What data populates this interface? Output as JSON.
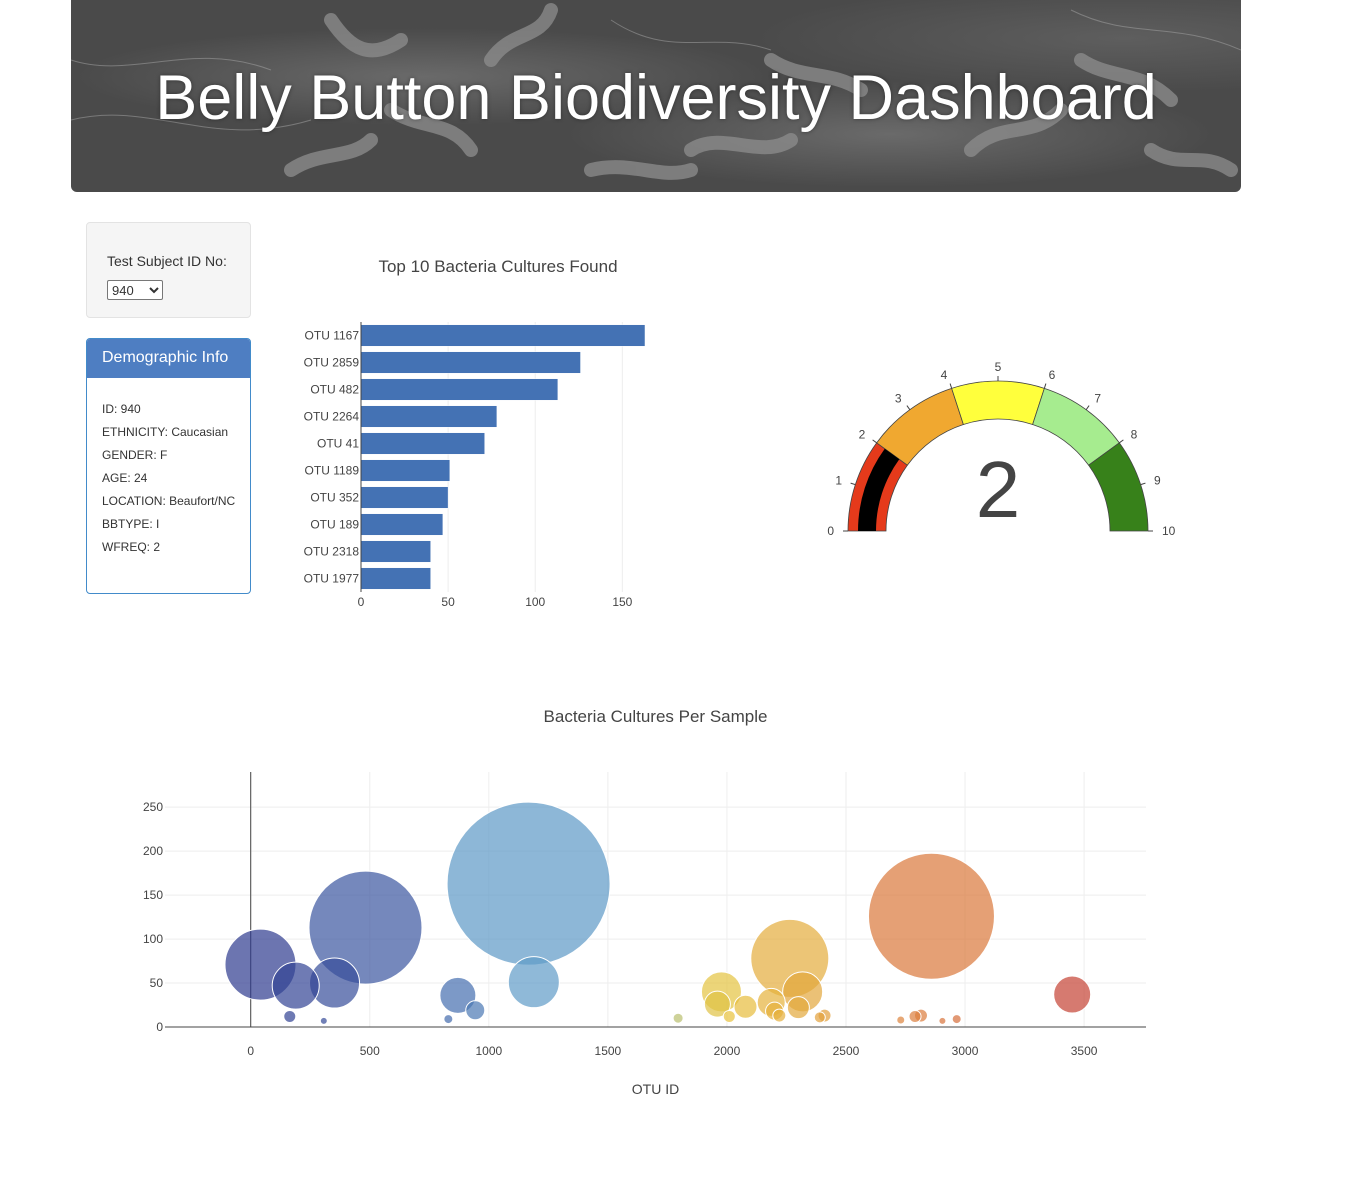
{
  "header": {
    "title": "Belly Button Biodiversity Dashboard"
  },
  "selector": {
    "label": "Test Subject ID No:",
    "selected": "940"
  },
  "demographics": {
    "title": "Demographic Info",
    "items": [
      "ID: 940",
      "ETHNICITY: Caucasian",
      "GENDER: F",
      "AGE: 24",
      "LOCATION: Beaufort/NC",
      "BBTYPE: I",
      "WFREQ: 2"
    ]
  },
  "chart_data": [
    {
      "type": "bar",
      "orientation": "horizontal",
      "title": "Top 10 Bacteria Cultures Found",
      "categories": [
        "OTU 1167",
        "OTU 2859",
        "OTU 482",
        "OTU 2264",
        "OTU 41",
        "OTU 1189",
        "OTU 352",
        "OTU 189",
        "OTU 2318",
        "OTU 1977"
      ],
      "values": [
        163,
        126,
        113,
        78,
        71,
        51,
        50,
        47,
        40,
        40
      ],
      "xlim": [
        0,
        163
      ],
      "xticks": [
        0,
        50,
        100,
        150
      ],
      "color": "#4472b4",
      "grid": true
    },
    {
      "type": "gauge",
      "value": 2,
      "range": [
        0,
        10
      ],
      "ticks": [
        0,
        1,
        2,
        3,
        4,
        5,
        6,
        7,
        8,
        9,
        10
      ],
      "bands": [
        {
          "from": 0,
          "to": 2,
          "color": "#e53a1b"
        },
        {
          "from": 2,
          "to": 4,
          "color": "#f0a830"
        },
        {
          "from": 4,
          "to": 6,
          "color": "#ffff3c"
        },
        {
          "from": 6,
          "to": 8,
          "color": "#a6ec8f"
        },
        {
          "from": 8,
          "to": 10,
          "color": "#37811a"
        }
      ],
      "bar_color": "#000000"
    },
    {
      "type": "scatter",
      "title": "Bacteria Cultures Per Sample",
      "xlabel": "OTU ID",
      "ylabel": "",
      "xlim": [
        -360,
        3760
      ],
      "ylim": [
        0,
        290
      ],
      "xticks": [
        0,
        500,
        1000,
        1500,
        2000,
        2500,
        3000,
        3500
      ],
      "yticks": [
        0,
        50,
        100,
        150,
        200,
        250
      ],
      "grid": true,
      "points": [
        {
          "x": 41,
          "y": 71
        },
        {
          "x": 189,
          "y": 47
        },
        {
          "x": 352,
          "y": 50
        },
        {
          "x": 482,
          "y": 113
        },
        {
          "x": 164,
          "y": 12
        },
        {
          "x": 307,
          "y": 7
        },
        {
          "x": 870,
          "y": 36
        },
        {
          "x": 943,
          "y": 19
        },
        {
          "x": 830,
          "y": 9
        },
        {
          "x": 1167,
          "y": 163
        },
        {
          "x": 1189,
          "y": 51
        },
        {
          "x": 1795,
          "y": 10
        },
        {
          "x": 1977,
          "y": 40
        },
        {
          "x": 1960,
          "y": 26
        },
        {
          "x": 2010,
          "y": 12
        },
        {
          "x": 2078,
          "y": 23
        },
        {
          "x": 2186,
          "y": 28
        },
        {
          "x": 2200,
          "y": 18
        },
        {
          "x": 2220,
          "y": 13
        },
        {
          "x": 2264,
          "y": 78
        },
        {
          "x": 2318,
          "y": 40
        },
        {
          "x": 2300,
          "y": 22
        },
        {
          "x": 2390,
          "y": 11
        },
        {
          "x": 2410,
          "y": 13
        },
        {
          "x": 2859,
          "y": 126
        },
        {
          "x": 2730,
          "y": 8
        },
        {
          "x": 2790,
          "y": 12
        },
        {
          "x": 2815,
          "y": 13
        },
        {
          "x": 2905,
          "y": 7
        },
        {
          "x": 2965,
          "y": 9
        },
        {
          "x": 3450,
          "y": 37
        }
      ]
    }
  ]
}
